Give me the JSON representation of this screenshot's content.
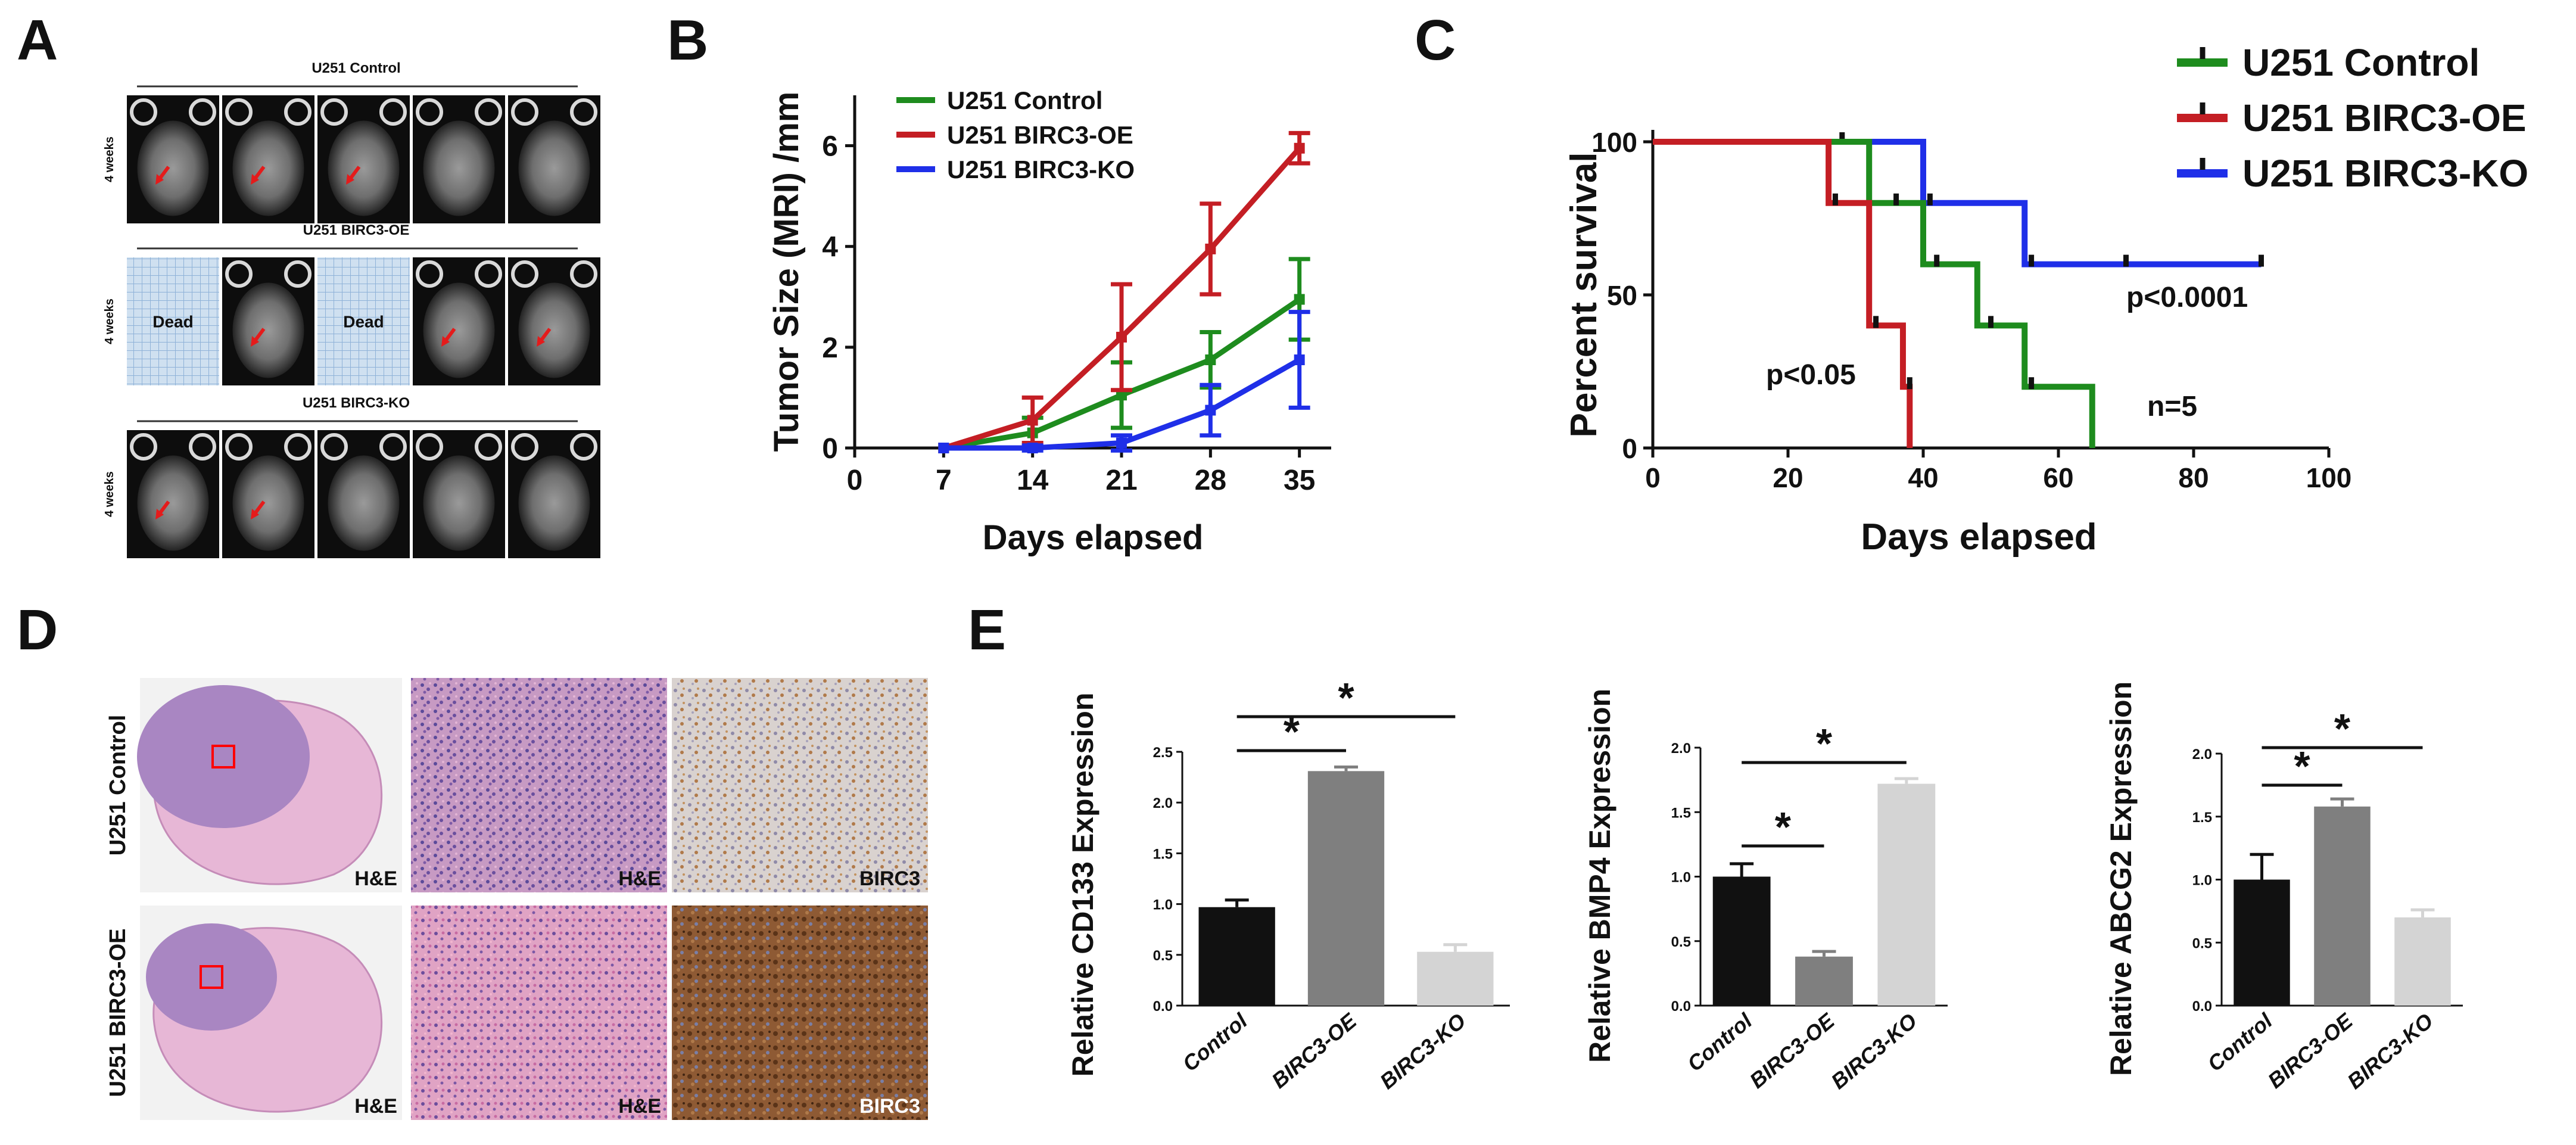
{
  "panel_letters": {
    "a": "A",
    "b": "B",
    "c": "C",
    "d": "D",
    "e": "E"
  },
  "panel_a": {
    "groups": [
      {
        "title": "U251 Control",
        "timepoint": "4 weeks",
        "dead_label": ""
      },
      {
        "title": "U251 BIRC3-OE",
        "timepoint": "4 weeks",
        "dead_label": "Dead"
      },
      {
        "title": "U251 BIRC3-KO",
        "timepoint": "4 weeks",
        "dead_label": ""
      }
    ]
  },
  "panel_d": {
    "row_labels": [
      "U251 Control",
      "U251 BIRC3-OE"
    ],
    "stain_labels": {
      "he": "H&E",
      "birc3": "BIRC3"
    }
  },
  "colors": {
    "control": "#1e8c1e",
    "oe": "#c41e24",
    "ko": "#1f2fe8",
    "bar_control": "#111111",
    "bar_oe": "#7f7f7f",
    "bar_ko": "#d4d4d4"
  },
  "chart_data": [
    {
      "id": "B",
      "type": "line",
      "ylabel": "Tumor Size (MRI) /mm",
      "xlabel": "Days elapsed",
      "xlim": [
        0,
        37.5
      ],
      "ylim": [
        0,
        7
      ],
      "xticks": [
        0,
        7,
        14,
        21,
        28,
        35
      ],
      "yticks": [
        0,
        2,
        4,
        6
      ],
      "legend_position": "top",
      "x": [
        7,
        14,
        21,
        28,
        35
      ],
      "series": [
        {
          "name": "U251 Control",
          "color": "#1e8c1e",
          "values": [
            0,
            0.3,
            1.05,
            1.75,
            2.95
          ],
          "errors": [
            0,
            0.3,
            0.65,
            0.55,
            0.8
          ]
        },
        {
          "name": "U251 BIRC3-OE",
          "color": "#c41e24",
          "values": [
            0,
            0.55,
            2.2,
            3.95,
            5.95
          ],
          "errors": [
            0,
            0.45,
            1.05,
            0.9,
            0.3
          ]
        },
        {
          "name": "U251 BIRC3-KO",
          "color": "#1f2fe8",
          "values": [
            0,
            0.0,
            0.1,
            0.75,
            1.75
          ],
          "errors": [
            0,
            0.05,
            0.15,
            0.5,
            0.95
          ]
        }
      ]
    },
    {
      "id": "C",
      "type": "line",
      "subtype": "kaplan-meier",
      "ylabel": "Percent survival",
      "xlabel": "Days elapsed",
      "xlim": [
        0,
        100
      ],
      "ylim": [
        0,
        100
      ],
      "xticks": [
        0,
        20,
        40,
        60,
        80,
        100
      ],
      "yticks": [
        0,
        50,
        100
      ],
      "legend_position": "top-right",
      "annotations": [
        "p<0.05",
        "p<0.0001",
        "n=5"
      ],
      "series": [
        {
          "name": "U251 Control",
          "color": "#1e8c1e",
          "steps": [
            [
              0,
              100
            ],
            [
              32,
              80
            ],
            [
              40,
              60
            ],
            [
              48,
              40
            ],
            [
              55,
              20
            ],
            [
              65,
              0
            ]
          ],
          "censors": [
            [
              36,
              80
            ],
            [
              42,
              60
            ],
            [
              50,
              40
            ],
            [
              56,
              20
            ]
          ]
        },
        {
          "name": "U251 BIRC3-OE",
          "color": "#c41e24",
          "steps": [
            [
              0,
              100
            ],
            [
              26,
              80
            ],
            [
              32,
              40
            ],
            [
              37,
              20
            ],
            [
              38,
              0
            ]
          ],
          "censors": [
            [
              27,
              80
            ],
            [
              33,
              40
            ],
            [
              38,
              20
            ]
          ]
        },
        {
          "name": "U251 BIRC3-KO",
          "color": "#1f2fe8",
          "steps": [
            [
              0,
              100
            ],
            [
              40,
              80
            ],
            [
              55,
              60
            ],
            [
              90,
              60
            ]
          ],
          "censors": [
            [
              28,
              100
            ],
            [
              41,
              80
            ],
            [
              56,
              60
            ],
            [
              70,
              60
            ],
            [
              90,
              60
            ]
          ]
        }
      ]
    },
    {
      "id": "E1",
      "type": "bar",
      "ylabel": "Relative CD133 Expression",
      "categories": [
        "Control",
        "BIRC3-OE",
        "BIRC3-KO"
      ],
      "values": [
        0.97,
        2.31,
        0.53
      ],
      "errors": [
        0.07,
        0.04,
        0.07
      ],
      "ylim": [
        0,
        2.5
      ],
      "yticks": [
        "0.0",
        "0.5",
        "1.0",
        "1.5",
        "2.0",
        "2.5"
      ],
      "significance": [
        {
          "pair": [
            "Control",
            "BIRC3-OE"
          ],
          "label": "*"
        },
        {
          "pair": [
            "Control",
            "BIRC3-KO"
          ],
          "label": "*"
        }
      ]
    },
    {
      "id": "E2",
      "type": "bar",
      "ylabel": "Relative BMP4 Expression",
      "categories": [
        "Control",
        "BIRC3-OE",
        "BIRC3-KO"
      ],
      "values": [
        1.0,
        0.38,
        1.72
      ],
      "errors": [
        0.1,
        0.04,
        0.04
      ],
      "ylim": [
        0,
        2.0
      ],
      "yticks": [
        "0.0",
        "0.5",
        "1.0",
        "1.5",
        "2.0"
      ],
      "significance": [
        {
          "pair": [
            "Control",
            "BIRC3-OE"
          ],
          "label": "*"
        },
        {
          "pair": [
            "Control",
            "BIRC3-KO"
          ],
          "label": "*"
        }
      ]
    },
    {
      "id": "E3",
      "type": "bar",
      "ylabel": "Relative ABCG2 Expression",
      "categories": [
        "Control",
        "BIRC3-OE",
        "BIRC3-KO"
      ],
      "values": [
        1.0,
        1.58,
        0.7
      ],
      "errors": [
        0.2,
        0.06,
        0.06
      ],
      "ylim": [
        0,
        2.0
      ],
      "yticks": [
        "0.0",
        "0.5",
        "1.0",
        "1.5",
        "2.0"
      ],
      "significance": [
        {
          "pair": [
            "Control",
            "BIRC3-OE"
          ],
          "label": "*"
        },
        {
          "pair": [
            "Control",
            "BIRC3-KO"
          ],
          "label": "*"
        }
      ]
    }
  ]
}
